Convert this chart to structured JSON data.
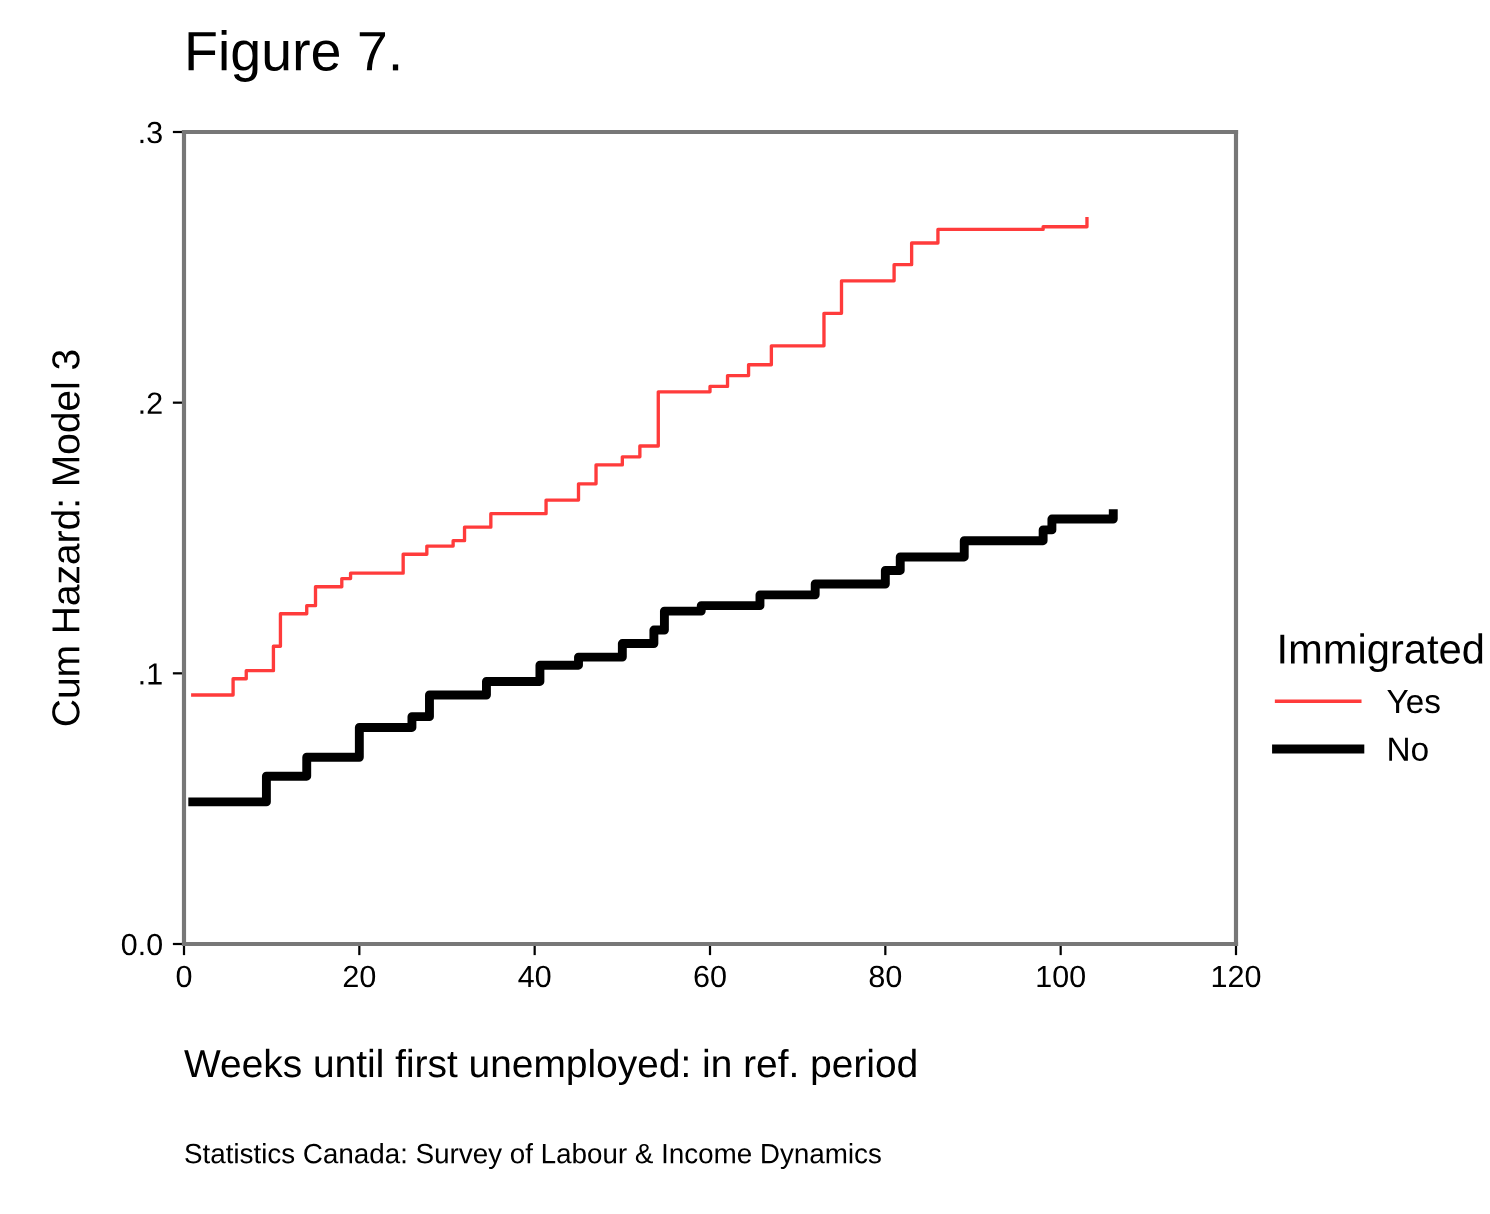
{
  "chart_data": {
    "type": "step",
    "title": "Figure 7.",
    "xlabel": "Weeks until first unemployed: in ref. period",
    "ylabel": "Cum Hazard: Model 3",
    "legend_title": "Immigrated",
    "legend": "right",
    "grid": false,
    "xlim": [
      0,
      120
    ],
    "xticks": [
      0,
      20,
      40,
      60,
      80,
      100,
      120
    ],
    "ylim": [
      0,
      0.3
    ],
    "yticks": [
      {
        "value": 0,
        "label": "0.0"
      },
      {
        "value": 0.1,
        "label": ".1"
      },
      {
        "value": 0.2,
        "label": ".2"
      },
      {
        "value": 0.3,
        "label": ".3"
      }
    ],
    "series": [
      {
        "name": "Yes",
        "color": "#ff3b3b",
        "x": [
          1,
          5.6,
          7.1,
          10.2,
          11,
          14,
          15,
          18,
          19,
          25,
          27.7,
          30.7,
          32,
          35,
          41.3,
          45,
          47,
          50,
          52,
          54.1,
          60,
          62,
          64.4,
          67,
          73,
          75,
          81,
          83,
          86,
          98,
          103
        ],
        "values": [
          0.092,
          0.098,
          0.101,
          0.11,
          0.122,
          0.125,
          0.132,
          0.135,
          0.137,
          0.144,
          0.147,
          0.149,
          0.154,
          0.159,
          0.164,
          0.17,
          0.177,
          0.18,
          0.184,
          0.204,
          0.206,
          0.21,
          0.214,
          0.221,
          0.233,
          0.245,
          0.251,
          0.259,
          0.264,
          0.265,
          0.268
        ]
      },
      {
        "name": "No",
        "color": "#000000",
        "x": [
          1,
          9.4,
          14,
          20,
          26,
          28,
          34.5,
          40.6,
          45,
          50,
          53.6,
          54.8,
          59,
          65.7,
          72,
          80,
          81.7,
          89,
          98,
          99,
          106
        ],
        "values": [
          0.0525,
          0.062,
          0.069,
          0.08,
          0.084,
          0.092,
          0.097,
          0.103,
          0.106,
          0.111,
          0.116,
          0.123,
          0.125,
          0.129,
          0.133,
          0.138,
          0.143,
          0.149,
          0.153,
          0.157,
          0.159
        ]
      }
    ],
    "annotations": [
      "Statistics Canada: Survey of Labour & Income Dynamics"
    ]
  }
}
